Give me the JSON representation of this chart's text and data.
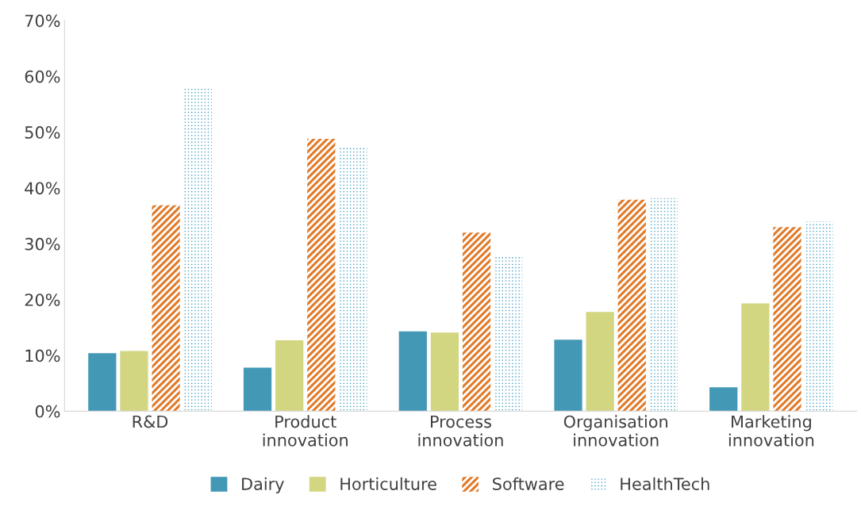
{
  "chart_data": {
    "type": "bar",
    "categories": [
      "R&D",
      "Product\ninnovation",
      "Process\ninnovation",
      "Organisation\ninnovation",
      "Marketing\ninnovation"
    ],
    "series": [
      {
        "name": "Dairy",
        "color": "#4398b6",
        "values": [
          10.4,
          7.8,
          14.3,
          12.8,
          4.3
        ]
      },
      {
        "name": "Horticulture",
        "color": "#d2d680",
        "values": [
          10.8,
          12.7,
          14.1,
          17.8,
          19.3
        ]
      },
      {
        "name": "Software",
        "color": "#e07b2a",
        "values": [
          36.9,
          48.8,
          32.0,
          37.9,
          33.0
        ]
      },
      {
        "name": "HealthTech",
        "color": "#3f9cc4",
        "values": [
          57.8,
          47.4,
          27.8,
          38.2,
          34.0
        ]
      }
    ],
    "ylim": [
      0,
      70
    ],
    "yticks": [
      {
        "value": 0,
        "label": "0%"
      },
      {
        "value": 10,
        "label": "10%"
      },
      {
        "value": 20,
        "label": "20%"
      },
      {
        "value": 30,
        "label": "30%"
      },
      {
        "value": 40,
        "label": "40%"
      },
      {
        "value": 50,
        "label": "50%"
      },
      {
        "value": 60,
        "label": "60%"
      },
      {
        "value": 70,
        "label": "70%"
      }
    ],
    "grid": false,
    "legend": "bottom"
  }
}
